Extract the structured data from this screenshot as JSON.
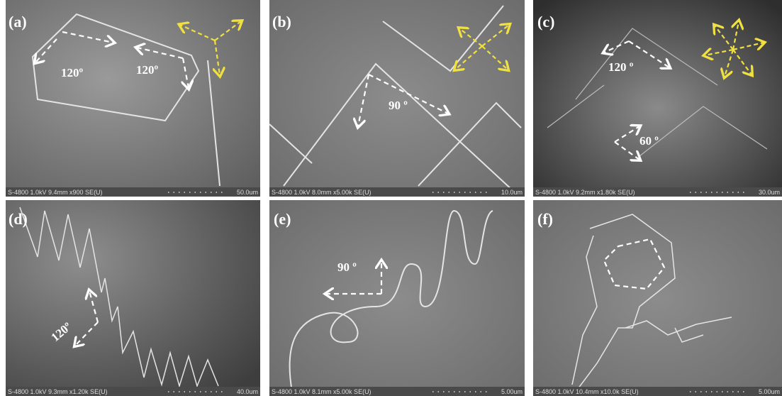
{
  "panels": [
    {
      "label": "(a)",
      "angles": [
        "120º",
        "120º"
      ],
      "info": "S-4800 1.0kV 9.4mm x900 SE(U)",
      "scale": "50.0um"
    },
    {
      "label": "(b)",
      "angles": [
        "90 º"
      ],
      "info": "S-4800 1.0kV 8.0mm x5.00k SE(U)",
      "scale": "10.0um"
    },
    {
      "label": "(c)",
      "angles": [
        "120 º",
        "60 º"
      ],
      "info": "S-4800 1.0kV 9.2mm x1.80k SE(U)",
      "scale": "30.0um"
    },
    {
      "label": "(d)",
      "angles": [
        "120º"
      ],
      "info": "S-4800 1.0kV 9.3mm x1.20k SE(U)",
      "scale": "40.0um"
    },
    {
      "label": "(e)",
      "angles": [
        "90 º"
      ],
      "info": "S-4800 1.0kV 8.1mm x5.00k SE(U)",
      "scale": "5.00um"
    },
    {
      "label": "(f)",
      "info": "S-4800 1.0kV 10.4mm x10.0k SE(U)",
      "scale": "5.00um"
    }
  ]
}
